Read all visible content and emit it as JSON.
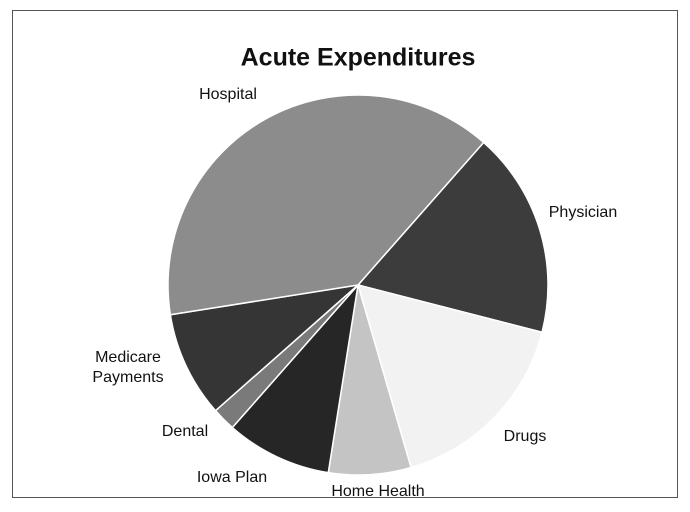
{
  "chart_data": {
    "type": "pie",
    "title": "Acute Expenditures",
    "categories": [
      "Physician",
      "Drugs",
      "Home Health",
      "Iowa Plan",
      "Dental",
      "Medicare Payments",
      "Hospital"
    ],
    "values": [
      17.5,
      16.5,
      7,
      9,
      2,
      9,
      39
    ],
    "colors": [
      "#3c3c3c",
      "#f2f2f2",
      "#c4c4c4",
      "#262626",
      "#7a7a7a",
      "#353535",
      "#8c8c8c"
    ]
  }
}
